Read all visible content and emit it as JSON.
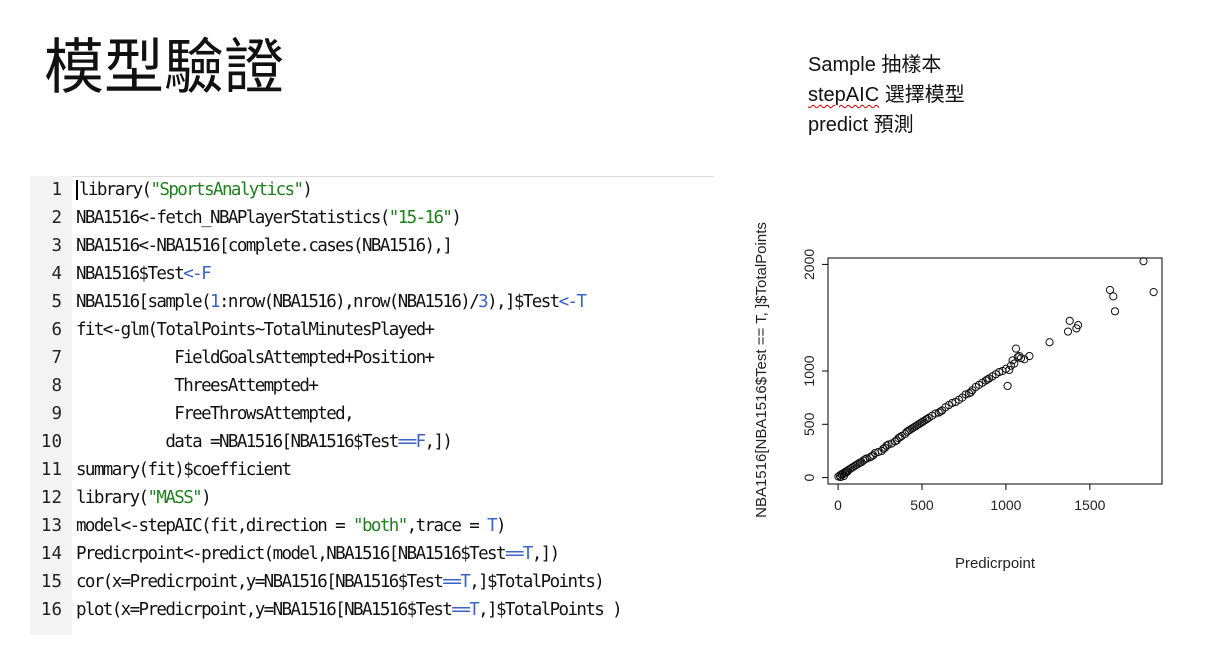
{
  "slide": {
    "title": "模型驗證",
    "notes": [
      {
        "term": "Sample",
        "desc": "抽樣本"
      },
      {
        "term": "stepAIC",
        "desc": "選擇模型"
      },
      {
        "term": "predict",
        "desc": "預測"
      }
    ]
  },
  "code": {
    "lines": [
      {
        "n": "1",
        "parts": [
          {
            "t": "library(",
            "k": "p"
          },
          {
            "t": "\"SportsAnalytics\"",
            "k": "s"
          },
          {
            "t": ")",
            "k": "p"
          }
        ]
      },
      {
        "n": "2",
        "parts": [
          {
            "t": "NBA1516<-fetch_NBAPlayerStatistics(",
            "k": "p"
          },
          {
            "t": "\"15-16\"",
            "k": "s"
          },
          {
            "t": ")",
            "k": "p"
          }
        ]
      },
      {
        "n": "3",
        "parts": [
          {
            "t": "NBA1516<-NBA1516[complete.cases(NBA1516),]",
            "k": "p"
          }
        ]
      },
      {
        "n": "4",
        "parts": [
          {
            "t": "NBA1516$Test",
            "k": "p"
          },
          {
            "t": "<-F",
            "k": "o"
          }
        ]
      },
      {
        "n": "5",
        "parts": [
          {
            "t": "NBA1516[sample(",
            "k": "p"
          },
          {
            "t": "1",
            "k": "n"
          },
          {
            "t": ":nrow(NBA1516),nrow(NBA1516)/",
            "k": "p"
          },
          {
            "t": "3",
            "k": "n"
          },
          {
            "t": "),]$Test",
            "k": "p"
          },
          {
            "t": "<-T",
            "k": "o"
          }
        ]
      },
      {
        "n": "6",
        "parts": [
          {
            "t": "fit<-glm(TotalPoints~TotalMinutesPlayed+",
            "k": "p"
          }
        ]
      },
      {
        "n": "7",
        "parts": [
          {
            "t": "           FieldGoalsAttempted+Position+",
            "k": "p"
          }
        ]
      },
      {
        "n": "8",
        "parts": [
          {
            "t": "           ThreesAttempted+",
            "k": "p"
          }
        ]
      },
      {
        "n": "9",
        "parts": [
          {
            "t": "           FreeThrowsAttempted,",
            "k": "p"
          }
        ]
      },
      {
        "n": "10",
        "parts": [
          {
            "t": "          data =NBA1516[NBA1516$Test",
            "k": "p"
          },
          {
            "t": "==F",
            "k": "o"
          },
          {
            "t": ",])",
            "k": "p"
          }
        ]
      },
      {
        "n": "11",
        "parts": [
          {
            "t": "summary(fit)$coefficient",
            "k": "p"
          }
        ]
      },
      {
        "n": "12",
        "parts": [
          {
            "t": "library(",
            "k": "p"
          },
          {
            "t": "\"MASS\"",
            "k": "s"
          },
          {
            "t": ")",
            "k": "p"
          }
        ]
      },
      {
        "n": "13",
        "parts": [
          {
            "t": "model<-stepAIC(fit,direction = ",
            "k": "p"
          },
          {
            "t": "\"both\"",
            "k": "s"
          },
          {
            "t": ",trace = ",
            "k": "p"
          },
          {
            "t": "T",
            "k": "o"
          },
          {
            "t": ")",
            "k": "p"
          }
        ]
      },
      {
        "n": "14",
        "parts": [
          {
            "t": "Predicrpoint<-predict(model,NBA1516[NBA1516$Test",
            "k": "p"
          },
          {
            "t": "==T",
            "k": "o"
          },
          {
            "t": ",])",
            "k": "p"
          }
        ]
      },
      {
        "n": "15",
        "parts": [
          {
            "t": "cor(x=Predicrpoint,y=NBA1516[NBA1516$Test",
            "k": "p"
          },
          {
            "t": "==T",
            "k": "o"
          },
          {
            "t": ",]$TotalPoints)",
            "k": "p"
          }
        ]
      },
      {
        "n": "16",
        "parts": [
          {
            "t": "plot(x=Predicrpoint,y=NBA1516[NBA1516$Test",
            "k": "p"
          },
          {
            "t": "==T",
            "k": "o"
          },
          {
            "t": ",]$TotalPoints )",
            "k": "p"
          }
        ]
      }
    ]
  },
  "chart_data": {
    "type": "scatter",
    "title": "",
    "xlabel": "Predicrpoint",
    "ylabel": "NBA1516[NBA1516$Test == T, ]$TotalPoints",
    "xlim": [
      -60,
      1930
    ],
    "ylim": [
      -60,
      2060
    ],
    "xticks": [
      0,
      500,
      1000,
      1500
    ],
    "yticks": [
      0,
      500,
      1000,
      2000
    ],
    "grid": false,
    "x": [
      2,
      10,
      15,
      20,
      25,
      30,
      35,
      40,
      45,
      50,
      55,
      60,
      70,
      80,
      90,
      100,
      110,
      120,
      130,
      140,
      150,
      160,
      170,
      190,
      200,
      210,
      220,
      240,
      260,
      270,
      280,
      290,
      300,
      320,
      340,
      350,
      360,
      370,
      380,
      400,
      410,
      420,
      430,
      440,
      450,
      460,
      470,
      480,
      490,
      500,
      510,
      520,
      530,
      540,
      560,
      580,
      600,
      610,
      620,
      640,
      660,
      680,
      700,
      720,
      740,
      760,
      780,
      790,
      800,
      820,
      840,
      860,
      880,
      890,
      900,
      920,
      940,
      960,
      980,
      1000,
      1010,
      1020,
      1030,
      1040,
      1050,
      1060,
      1070,
      1080,
      1090,
      1110,
      1140,
      1260,
      1370,
      1380,
      1420,
      1430,
      1620,
      1640,
      1650,
      1820,
      1880
    ],
    "y": [
      10,
      20,
      5,
      30,
      25,
      40,
      15,
      50,
      45,
      60,
      55,
      70,
      80,
      90,
      100,
      110,
      120,
      130,
      140,
      145,
      160,
      170,
      180,
      190,
      200,
      210,
      230,
      240,
      250,
      270,
      280,
      300,
      310,
      320,
      340,
      350,
      370,
      380,
      390,
      410,
      430,
      440,
      450,
      460,
      470,
      480,
      490,
      500,
      510,
      520,
      530,
      540,
      550,
      560,
      580,
      600,
      610,
      620,
      630,
      660,
      680,
      700,
      710,
      730,
      750,
      780,
      790,
      800,
      820,
      850,
      870,
      890,
      910,
      920,
      930,
      950,
      970,
      990,
      1000,
      1020,
      860,
      1010,
      1050,
      1100,
      1070,
      1210,
      1130,
      1140,
      1120,
      1110,
      1140,
      1270,
      1370,
      1470,
      1400,
      1430,
      1760,
      1700,
      1560,
      2030,
      1740
    ]
  }
}
